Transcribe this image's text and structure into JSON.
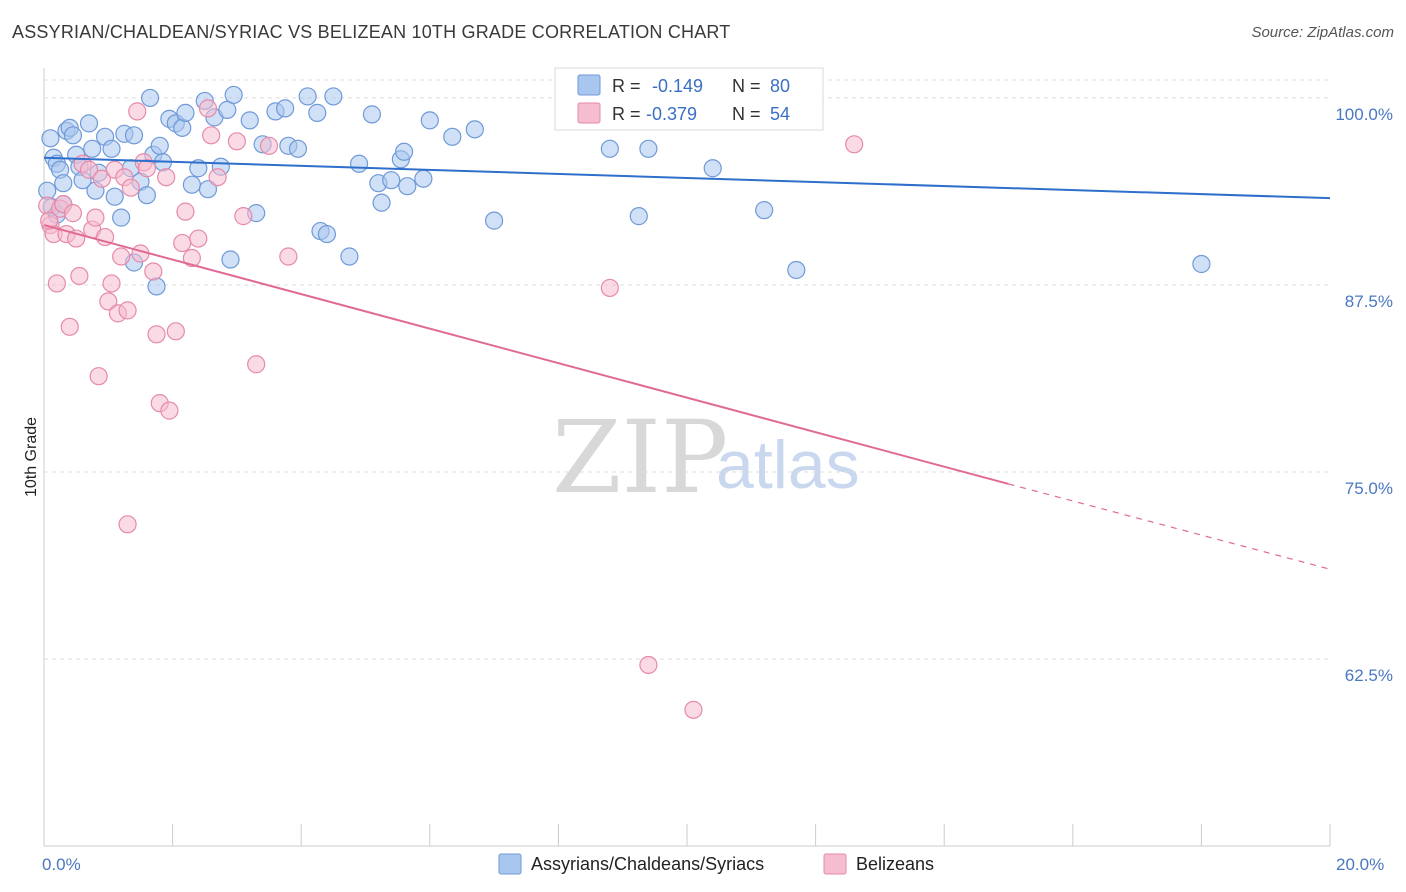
{
  "title": "ASSYRIAN/CHALDEAN/SYRIAC VS BELIZEAN 10TH GRADE CORRELATION CHART",
  "source": "Source: ZipAtlas.com",
  "watermark": {
    "zip": "ZIP",
    "atlas": "atlas"
  },
  "colors": {
    "blue_fill": "#a9c6ef",
    "blue_stroke": "#6f9ad8",
    "blue_line": "#2f6fcc",
    "pink_fill": "#f6bcd0",
    "pink_stroke": "#e68aaa",
    "pink_line": "#e06a96",
    "grid": "#dedede",
    "tick_text": "#4a78c0"
  },
  "legend": {
    "r_label": "R =",
    "n_label": "N =",
    "series1": {
      "r": "-0.149",
      "n": "80"
    },
    "series2": {
      "r": "-0.379",
      "n": "54"
    }
  },
  "chart_data": {
    "type": "scatter",
    "title": "ASSYRIAN/CHALDEAN/SYRIAC VS BELIZEAN 10TH GRADE CORRELATION CHART",
    "xlabel": "",
    "ylabel": "10th Grade",
    "xlim": [
      0,
      20
    ],
    "ylim": [
      50,
      102
    ],
    "x_tick_labels": [
      "0.0%",
      "20.0%"
    ],
    "y_ticks": [
      62.5,
      75.0,
      87.5,
      100.0
    ],
    "y_tick_labels": [
      "62.5%",
      "75.0%",
      "87.5%",
      "100.0%"
    ],
    "series": [
      {
        "name": "Assyrians/Chaldeans/Syriacs",
        "color": "#a9c6ef",
        "trend": {
          "x": [
            0,
            20
          ],
          "y": [
            96.0,
            93.3
          ]
        },
        "points": [
          [
            0.1,
            97.3
          ],
          [
            0.15,
            96.0
          ],
          [
            0.2,
            95.6
          ],
          [
            0.25,
            95.2
          ],
          [
            0.3,
            94.3
          ],
          [
            0.35,
            97.8
          ],
          [
            0.4,
            98.0
          ],
          [
            0.45,
            97.5
          ],
          [
            0.5,
            96.2
          ],
          [
            0.55,
            95.4
          ],
          [
            0.6,
            94.5
          ],
          [
            0.7,
            98.3
          ],
          [
            0.75,
            96.6
          ],
          [
            0.8,
            93.8
          ],
          [
            0.85,
            95.0
          ],
          [
            0.95,
            97.4
          ],
          [
            1.05,
            96.6
          ],
          [
            1.1,
            93.4
          ],
          [
            1.2,
            92.0
          ],
          [
            1.25,
            97.6
          ],
          [
            1.35,
            95.3
          ],
          [
            1.4,
            97.5
          ],
          [
            1.5,
            94.4
          ],
          [
            1.6,
            93.5
          ],
          [
            1.65,
            100.0
          ],
          [
            1.7,
            96.2
          ],
          [
            1.8,
            96.8
          ],
          [
            1.85,
            95.7
          ],
          [
            1.95,
            98.6
          ],
          [
            2.05,
            98.3
          ],
          [
            2.15,
            98.0
          ],
          [
            2.2,
            99.0
          ],
          [
            2.3,
            94.2
          ],
          [
            2.4,
            95.3
          ],
          [
            2.5,
            99.8
          ],
          [
            2.55,
            93.9
          ],
          [
            2.65,
            98.7
          ],
          [
            2.75,
            95.4
          ],
          [
            2.85,
            99.2
          ],
          [
            2.95,
            100.2
          ],
          [
            3.2,
            98.5
          ],
          [
            3.3,
            92.3
          ],
          [
            3.4,
            96.9
          ],
          [
            3.6,
            99.1
          ],
          [
            3.75,
            99.3
          ],
          [
            3.8,
            96.8
          ],
          [
            3.95,
            96.6
          ],
          [
            4.1,
            100.1
          ],
          [
            4.25,
            99.0
          ],
          [
            4.3,
            91.1
          ],
          [
            4.4,
            90.9
          ],
          [
            4.5,
            100.1
          ],
          [
            4.75,
            89.4
          ],
          [
            4.9,
            95.6
          ],
          [
            5.1,
            98.9
          ],
          [
            5.2,
            94.3
          ],
          [
            5.25,
            93.0
          ],
          [
            5.4,
            94.5
          ],
          [
            5.55,
            95.9
          ],
          [
            5.6,
            96.4
          ],
          [
            5.65,
            94.1
          ],
          [
            5.9,
            94.6
          ],
          [
            6.0,
            98.5
          ],
          [
            6.35,
            97.4
          ],
          [
            6.7,
            97.9
          ],
          [
            7.0,
            91.8
          ],
          [
            8.8,
            96.6
          ],
          [
            9.25,
            92.1
          ],
          [
            9.4,
            96.6
          ],
          [
            10.4,
            95.3
          ],
          [
            11.2,
            92.5
          ],
          [
            11.7,
            88.5
          ],
          [
            18.0,
            88.9
          ],
          [
            0.05,
            93.8
          ],
          [
            0.12,
            92.7
          ],
          [
            0.2,
            92.2
          ],
          [
            0.3,
            92.9
          ],
          [
            1.4,
            89.0
          ],
          [
            1.75,
            87.4
          ],
          [
            2.9,
            89.2
          ]
        ]
      },
      {
        "name": "Belizeans",
        "color": "#f6bcd0",
        "trend": {
          "x": [
            0,
            15
          ],
          "y": [
            91.5,
            74.2
          ]
        },
        "trend_dashed": {
          "x": [
            15,
            20
          ],
          "y": [
            74.2,
            68.5
          ]
        },
        "points": [
          [
            0.05,
            92.8
          ],
          [
            0.1,
            91.5
          ],
          [
            0.15,
            90.9
          ],
          [
            0.2,
            87.6
          ],
          [
            0.25,
            92.6
          ],
          [
            0.3,
            92.9
          ],
          [
            0.35,
            90.9
          ],
          [
            0.4,
            84.7
          ],
          [
            0.45,
            92.3
          ],
          [
            0.5,
            90.6
          ],
          [
            0.55,
            88.1
          ],
          [
            0.6,
            95.6
          ],
          [
            0.7,
            95.2
          ],
          [
            0.75,
            91.2
          ],
          [
            0.8,
            92.0
          ],
          [
            0.85,
            81.4
          ],
          [
            0.9,
            94.6
          ],
          [
            0.95,
            90.7
          ],
          [
            1.0,
            86.4
          ],
          [
            1.05,
            87.6
          ],
          [
            1.1,
            95.2
          ],
          [
            1.15,
            85.6
          ],
          [
            1.2,
            89.4
          ],
          [
            1.25,
            94.7
          ],
          [
            1.3,
            85.8
          ],
          [
            1.35,
            94.0
          ],
          [
            1.45,
            99.1
          ],
          [
            1.5,
            89.6
          ],
          [
            1.55,
            95.7
          ],
          [
            1.6,
            95.3
          ],
          [
            1.7,
            88.4
          ],
          [
            1.75,
            84.2
          ],
          [
            1.8,
            79.6
          ],
          [
            1.9,
            94.7
          ],
          [
            1.95,
            79.1
          ],
          [
            2.05,
            84.4
          ],
          [
            2.15,
            90.3
          ],
          [
            2.2,
            92.4
          ],
          [
            2.3,
            89.3
          ],
          [
            2.4,
            90.6
          ],
          [
            2.55,
            99.3
          ],
          [
            2.6,
            97.5
          ],
          [
            2.7,
            94.7
          ],
          [
            3.0,
            97.1
          ],
          [
            3.1,
            92.1
          ],
          [
            3.3,
            82.2
          ],
          [
            3.5,
            96.8
          ],
          [
            3.8,
            89.4
          ],
          [
            8.8,
            87.3
          ],
          [
            9.4,
            62.1
          ],
          [
            10.1,
            59.1
          ],
          [
            12.6,
            96.9
          ],
          [
            1.3,
            71.5
          ],
          [
            0.08,
            91.8
          ]
        ]
      }
    ]
  },
  "bottom_legend": {
    "series1": "Assyrians/Chaldeans/Syriacs",
    "series2": "Belizeans"
  }
}
